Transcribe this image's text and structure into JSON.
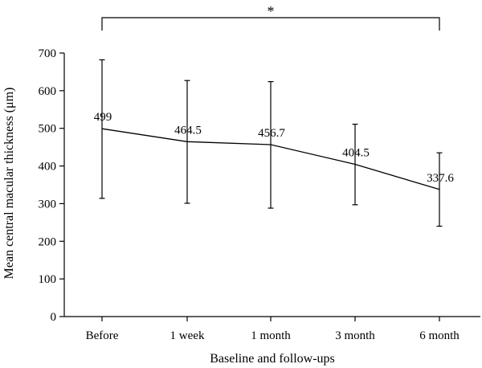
{
  "chart_data": {
    "type": "line",
    "categories": [
      "Before",
      "1 week",
      "1 month",
      "3 month",
      "6 month"
    ],
    "values": [
      499,
      464.5,
      456.7,
      404.5,
      337.6
    ],
    "error_bars": {
      "upper": [
        682,
        627,
        624,
        511,
        435
      ],
      "lower": [
        314,
        301,
        288,
        297,
        240
      ]
    },
    "data_labels": [
      "499",
      "464.5",
      "456.7",
      "404.5",
      "337.6"
    ],
    "xlabel": "Baseline and follow-ups",
    "ylabel": "Mean central macular thickness (μm)",
    "ylim": [
      0,
      700
    ],
    "yticks": [
      0,
      100,
      200,
      300,
      400,
      500,
      600,
      700
    ],
    "grid": false,
    "significance": {
      "from_category": "Before",
      "to_category": "6 month",
      "label": "*"
    },
    "colors": {
      "line": "#000000",
      "axis": "#000000",
      "background": "#ffffff"
    }
  }
}
